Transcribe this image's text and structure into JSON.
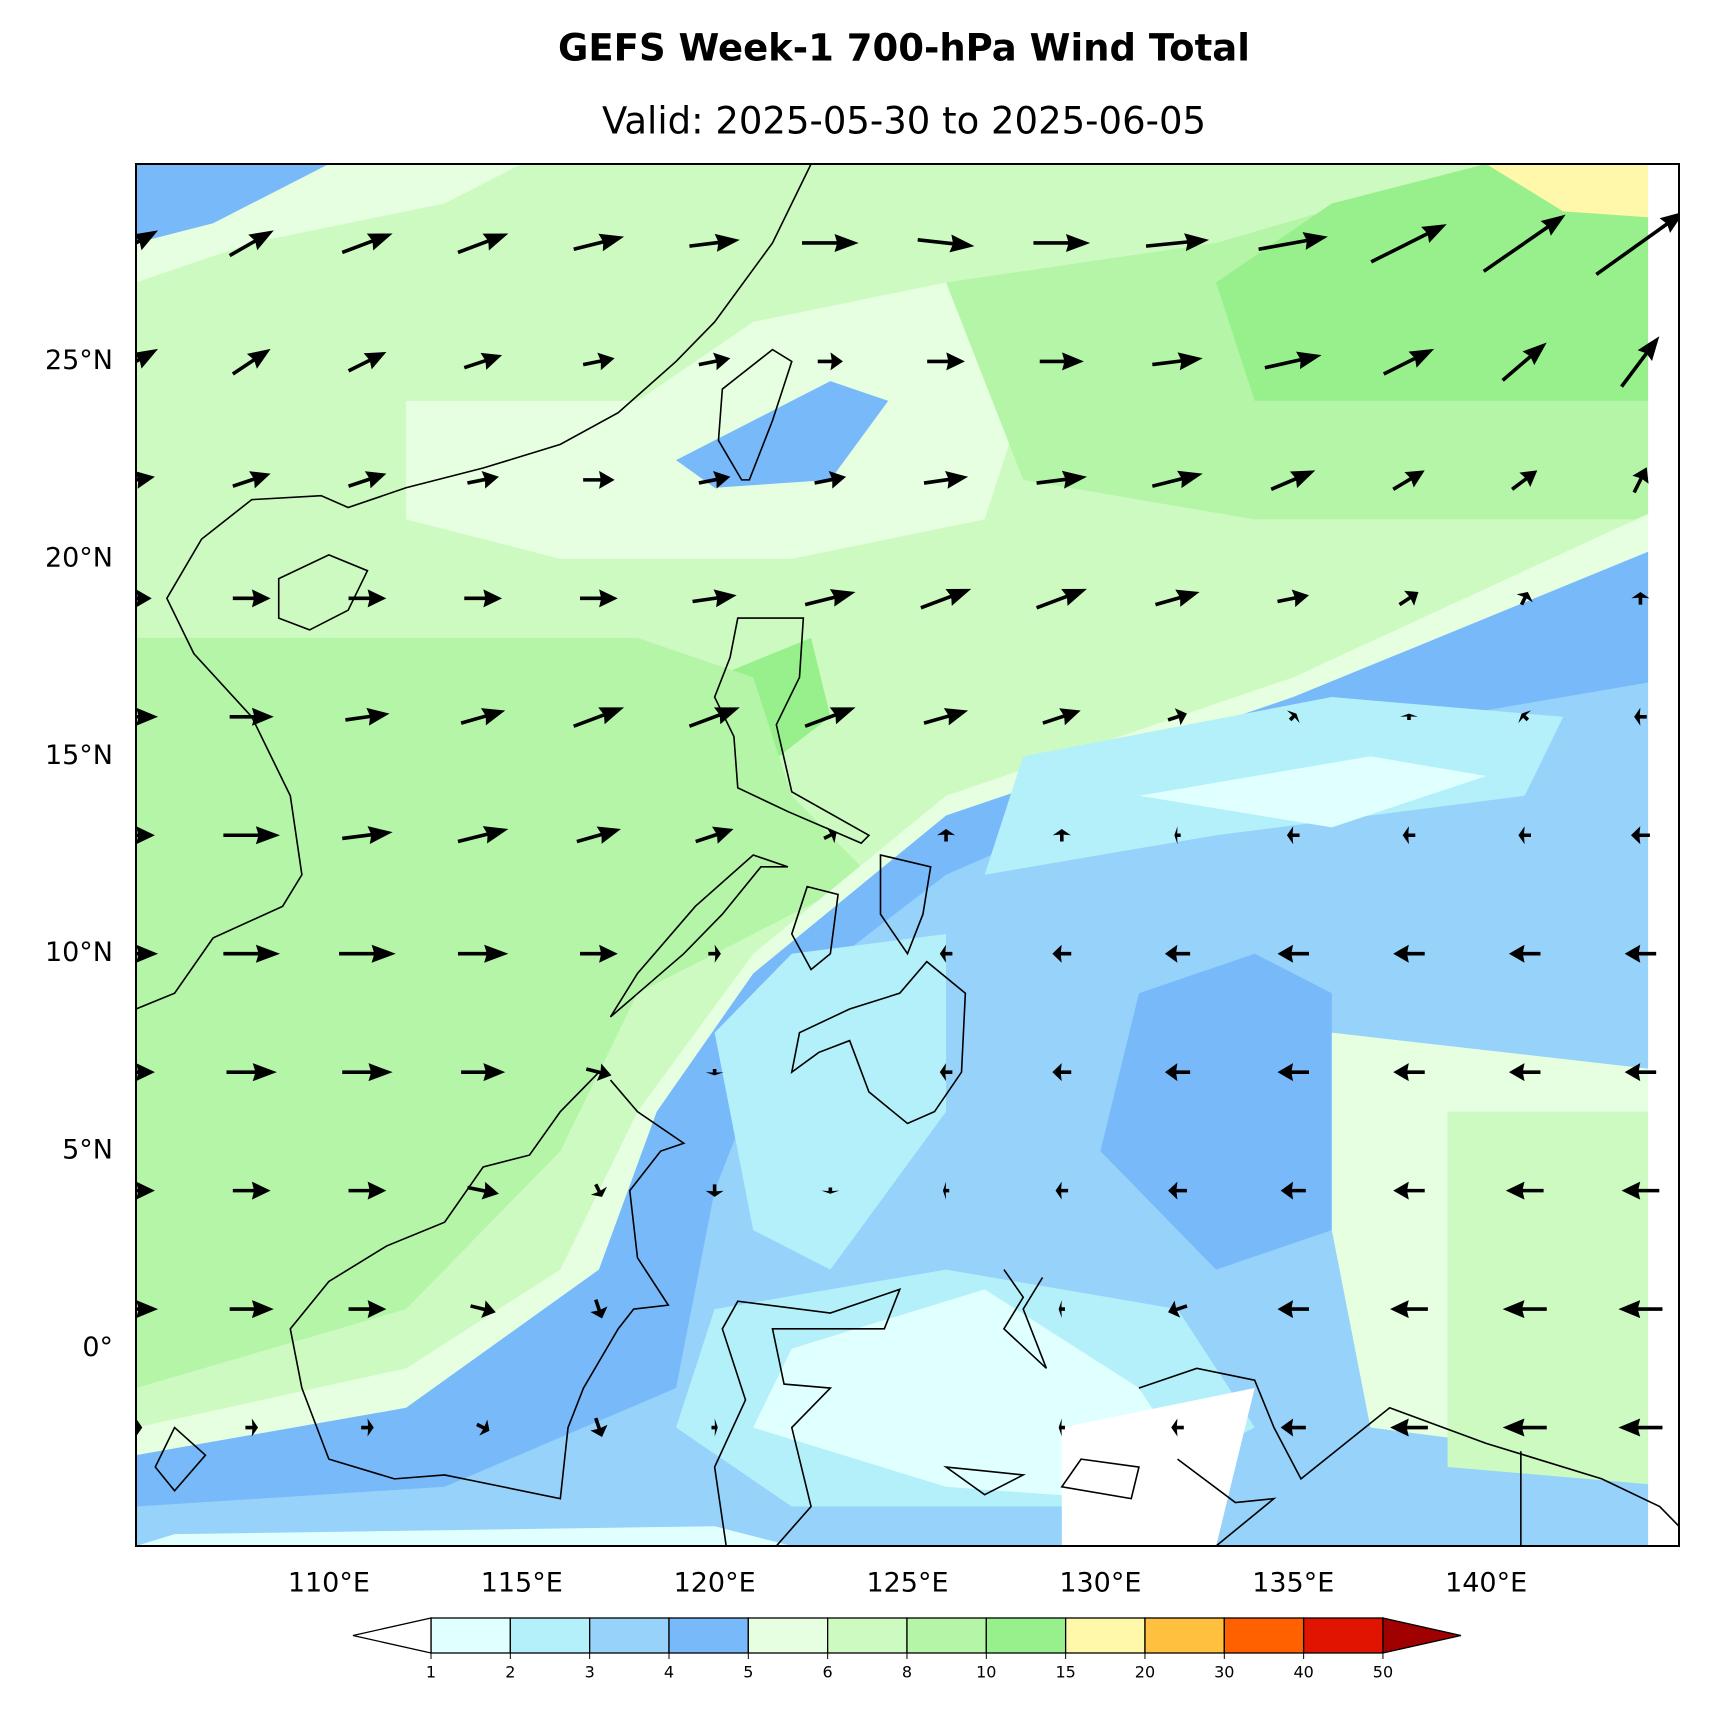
{
  "title": "GEFS Week-1 700-hPa Wind Total",
  "subtitle": "Valid: 2025-05-30 to 2025-06-05",
  "map": {
    "xlim": [
      105,
      145
    ],
    "ylim": [
      -5,
      30
    ],
    "xticks": [
      {
        "value": 110,
        "label": "110°E"
      },
      {
        "value": 115,
        "label": "115°E"
      },
      {
        "value": 120,
        "label": "120°E"
      },
      {
        "value": 125,
        "label": "125°E"
      },
      {
        "value": 130,
        "label": "130°E"
      },
      {
        "value": 135,
        "label": "135°E"
      },
      {
        "value": 140,
        "label": "140°E"
      }
    ],
    "yticks": [
      {
        "value": 0,
        "label": "0°"
      },
      {
        "value": 5,
        "label": "5°N"
      },
      {
        "value": 10,
        "label": "10°N"
      },
      {
        "value": 15,
        "label": "15°N"
      },
      {
        "value": 20,
        "label": "20°N"
      },
      {
        "value": 25,
        "label": "25°N"
      }
    ]
  },
  "colorbar": {
    "levels": [
      1,
      2,
      3,
      4,
      5,
      6,
      8,
      10,
      15,
      20,
      30,
      40,
      50
    ],
    "colors": [
      "#e0ffff",
      "#b4f0fa",
      "#96d2fa",
      "#78b9fa",
      "#e6ffe0",
      "#ccfac0",
      "#b4f5a8",
      "#98f08c",
      "#fff8aa",
      "#ffc040",
      "#ff6000",
      "#e01400"
    ],
    "under_color": "#ffffff",
    "over_color": "#a00000"
  },
  "wind": {
    "lons": [
      105,
      108,
      111,
      114,
      117,
      120,
      123,
      126,
      129,
      132,
      135,
      138,
      141,
      144
    ],
    "lats": [
      28,
      25,
      22,
      19,
      16,
      13,
      10,
      7,
      4,
      1,
      -2
    ],
    "u": [
      [
        7,
        7,
        8,
        8,
        8,
        8,
        9,
        9,
        9,
        10,
        11,
        12,
        13,
        14
      ],
      [
        7,
        6,
        6,
        6,
        5,
        5,
        4,
        6,
        7,
        8,
        9,
        8,
        7,
        6
      ],
      [
        6,
        6,
        6,
        5,
        5,
        5,
        5,
        7,
        8,
        8,
        7,
        5,
        4,
        2
      ],
      [
        5,
        6,
        6,
        6,
        6,
        7,
        8,
        8,
        8,
        7,
        5,
        3,
        1,
        0
      ],
      [
        7,
        7,
        7,
        7,
        8,
        8,
        8,
        7,
        6,
        3,
        1,
        0,
        -1,
        -2
      ],
      [
        6,
        9,
        8,
        8,
        7,
        6,
        2,
        0,
        0,
        -1,
        -2,
        -2,
        -2,
        -3
      ],
      [
        7,
        9,
        9,
        8,
        6,
        2,
        0,
        -2,
        -3,
        -4,
        -5,
        -5,
        -5,
        -5
      ],
      [
        6,
        8,
        8,
        7,
        4,
        0,
        0,
        -2,
        -3,
        -4,
        -5,
        -5,
        -5,
        -5
      ],
      [
        6,
        6,
        6,
        5,
        1,
        0,
        0,
        -1,
        -2,
        -3,
        -4,
        -5,
        -6,
        -6
      ],
      [
        7,
        7,
        6,
        4,
        1,
        0,
        0,
        0,
        -1,
        -3,
        -5,
        -6,
        -7,
        -7
      ],
      [
        2,
        2,
        2,
        2,
        1,
        1,
        0,
        0,
        -1,
        -2,
        -4,
        -6,
        -7,
        -7
      ]
    ],
    "v": [
      [
        4,
        4,
        3,
        3,
        2,
        1,
        0,
        -1,
        0,
        1,
        2,
        6,
        9,
        10
      ],
      [
        4,
        4,
        3,
        2,
        1,
        1,
        0,
        0,
        0,
        1,
        2,
        4,
        6,
        8
      ],
      [
        1,
        2,
        2,
        1,
        0,
        1,
        1,
        1,
        1,
        2,
        3,
        3,
        3,
        4
      ],
      [
        0,
        0,
        0,
        0,
        0,
        1,
        2,
        3,
        3,
        2,
        1,
        2,
        2,
        2
      ],
      [
        0,
        0,
        1,
        2,
        3,
        3,
        3,
        2,
        2,
        1,
        1,
        1,
        1,
        0
      ],
      [
        0,
        0,
        1,
        2,
        2,
        2,
        1,
        2,
        2,
        0,
        0,
        0,
        0,
        0
      ],
      [
        0,
        0,
        0,
        0,
        0,
        0,
        0,
        0,
        0,
        0,
        0,
        0,
        0,
        0
      ],
      [
        0,
        0,
        0,
        0,
        -1,
        -1,
        0,
        0,
        0,
        0,
        0,
        0,
        0,
        0
      ],
      [
        0,
        0,
        0,
        -1,
        -2,
        -2,
        -1,
        0,
        0,
        0,
        0,
        0,
        0,
        0
      ],
      [
        0,
        0,
        0,
        -1,
        -3,
        0,
        0,
        0,
        0,
        -1,
        0,
        0,
        0,
        0
      ],
      [
        0,
        0,
        0,
        -1,
        -3,
        0,
        0,
        0,
        0,
        0,
        0,
        0,
        0,
        0
      ]
    ]
  }
}
